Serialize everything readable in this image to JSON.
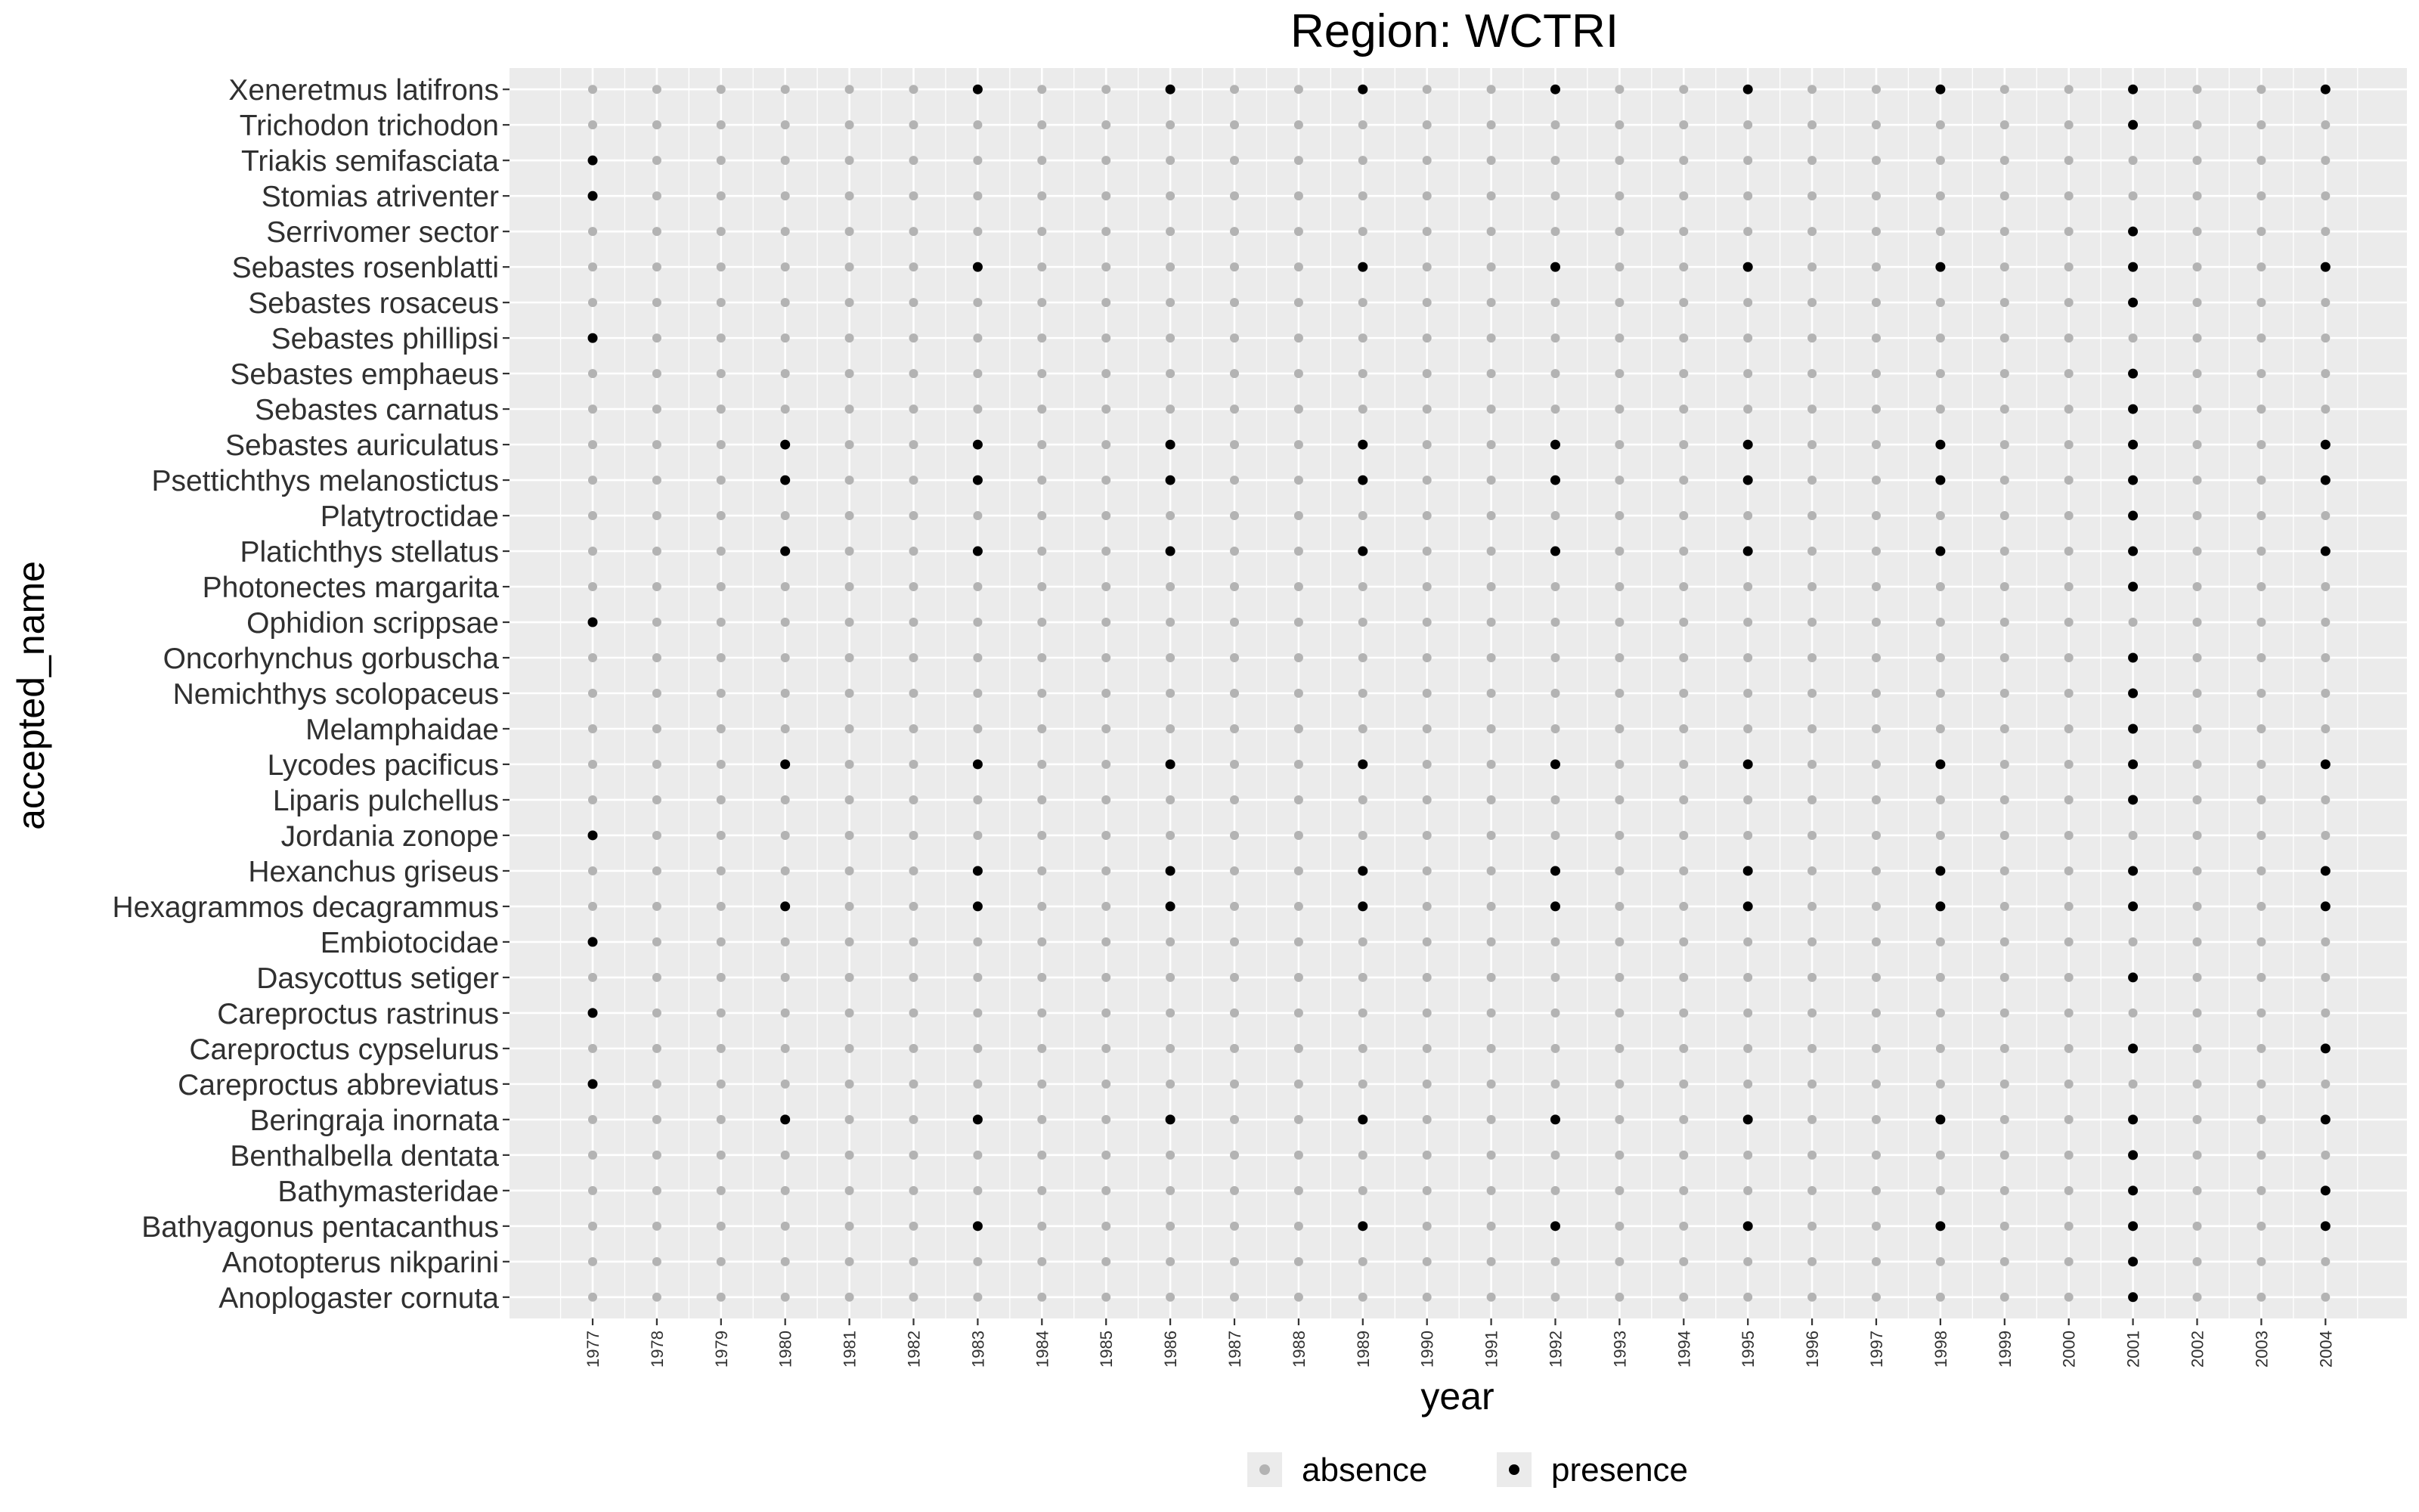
{
  "chart_data": {
    "type": "scatter",
    "title": "Region: WCTRI",
    "xlabel": "year",
    "ylabel": "accepted_name",
    "x": [
      1977,
      1978,
      1979,
      1980,
      1981,
      1982,
      1983,
      1984,
      1985,
      1986,
      1987,
      1988,
      1989,
      1990,
      1991,
      1992,
      1993,
      1994,
      1995,
      1996,
      1997,
      1998,
      1999,
      2000,
      2001,
      2002,
      2003,
      2004
    ],
    "categories": [
      "Anoplogaster cornuta",
      "Anotopterus nikparini",
      "Bathyagonus pentacanthus",
      "Bathymasteridae",
      "Benthalbella dentata",
      "Beringraja inornata",
      "Careproctus abbreviatus",
      "Careproctus cypselurus",
      "Careproctus rastrinus",
      "Dasycottus setiger",
      "Embiotocidae",
      "Hexagrammos decagrammus",
      "Hexanchus griseus",
      "Jordania zonope",
      "Liparis pulchellus",
      "Lycodes pacificus",
      "Melamphaidae",
      "Nemichthys scolopaceus",
      "Oncorhynchus gorbuscha",
      "Ophidion scrippsae",
      "Photonectes margarita",
      "Platichthys stellatus",
      "Platytroctidae",
      "Psettichthys melanostictus",
      "Sebastes auriculatus",
      "Sebastes carnatus",
      "Sebastes emphaeus",
      "Sebastes phillipsi",
      "Sebastes rosaceus",
      "Sebastes rosenblatti",
      "Serrivomer sector",
      "Stomias atriventer",
      "Triakis semifasciata",
      "Trichodon trichodon",
      "Xeneretmus latifrons"
    ],
    "presence": {
      "Anoplogaster cornuta": [
        2001
      ],
      "Anotopterus nikparini": [
        2001
      ],
      "Bathyagonus pentacanthus": [
        1983,
        1989,
        1992,
        1995,
        1998,
        2001,
        2004
      ],
      "Bathymasteridae": [
        2001,
        2004
      ],
      "Benthalbella dentata": [
        2001
      ],
      "Beringraja inornata": [
        1980,
        1983,
        1986,
        1989,
        1992,
        1995,
        1998,
        2001,
        2004
      ],
      "Careproctus abbreviatus": [
        1977
      ],
      "Careproctus cypselurus": [
        2001,
        2004
      ],
      "Careproctus rastrinus": [
        1977
      ],
      "Dasycottus setiger": [
        2001
      ],
      "Embiotocidae": [
        1977
      ],
      "Hexagrammos decagrammus": [
        1980,
        1983,
        1986,
        1989,
        1992,
        1995,
        1998,
        2001,
        2004
      ],
      "Hexanchus griseus": [
        1983,
        1986,
        1989,
        1992,
        1995,
        1998,
        2001,
        2004
      ],
      "Jordania zonope": [
        1977
      ],
      "Liparis pulchellus": [
        2001
      ],
      "Lycodes pacificus": [
        1980,
        1983,
        1986,
        1989,
        1992,
        1995,
        1998,
        2001,
        2004
      ],
      "Melamphaidae": [
        2001
      ],
      "Nemichthys scolopaceus": [
        2001
      ],
      "Oncorhynchus gorbuscha": [
        2001
      ],
      "Ophidion scrippsae": [
        1977
      ],
      "Photonectes margarita": [
        2001
      ],
      "Platichthys stellatus": [
        1980,
        1983,
        1986,
        1989,
        1992,
        1995,
        1998,
        2001,
        2004
      ],
      "Platytroctidae": [
        2001
      ],
      "Psettichthys melanostictus": [
        1980,
        1983,
        1986,
        1989,
        1992,
        1995,
        1998,
        2001,
        2004
      ],
      "Sebastes auriculatus": [
        1980,
        1983,
        1986,
        1989,
        1992,
        1995,
        1998,
        2001,
        2004
      ],
      "Sebastes carnatus": [
        2001
      ],
      "Sebastes emphaeus": [
        2001
      ],
      "Sebastes phillipsi": [
        1977
      ],
      "Sebastes rosaceus": [
        2001
      ],
      "Sebastes rosenblatti": [
        1983,
        1989,
        1992,
        1995,
        1998,
        2001,
        2004
      ],
      "Serrivomer sector": [
        2001
      ],
      "Stomias atriventer": [
        1977
      ],
      "Triakis semifasciata": [
        1977
      ],
      "Trichodon trichodon": [
        2001
      ],
      "Xeneretmus latifrons": [
        1983,
        1986,
        1989,
        1992,
        1995,
        1998,
        2001,
        2004
      ]
    },
    "legend": {
      "position": "bottom",
      "entries": [
        {
          "name": "absence",
          "color": "#b3b3b3"
        },
        {
          "name": "presence",
          "color": "#000000"
        }
      ]
    },
    "grid": true,
    "colors": {
      "panel_background": "#ebebeb",
      "gridline": "#ffffff",
      "absence": "#b3b3b3",
      "presence": "#000000"
    }
  }
}
